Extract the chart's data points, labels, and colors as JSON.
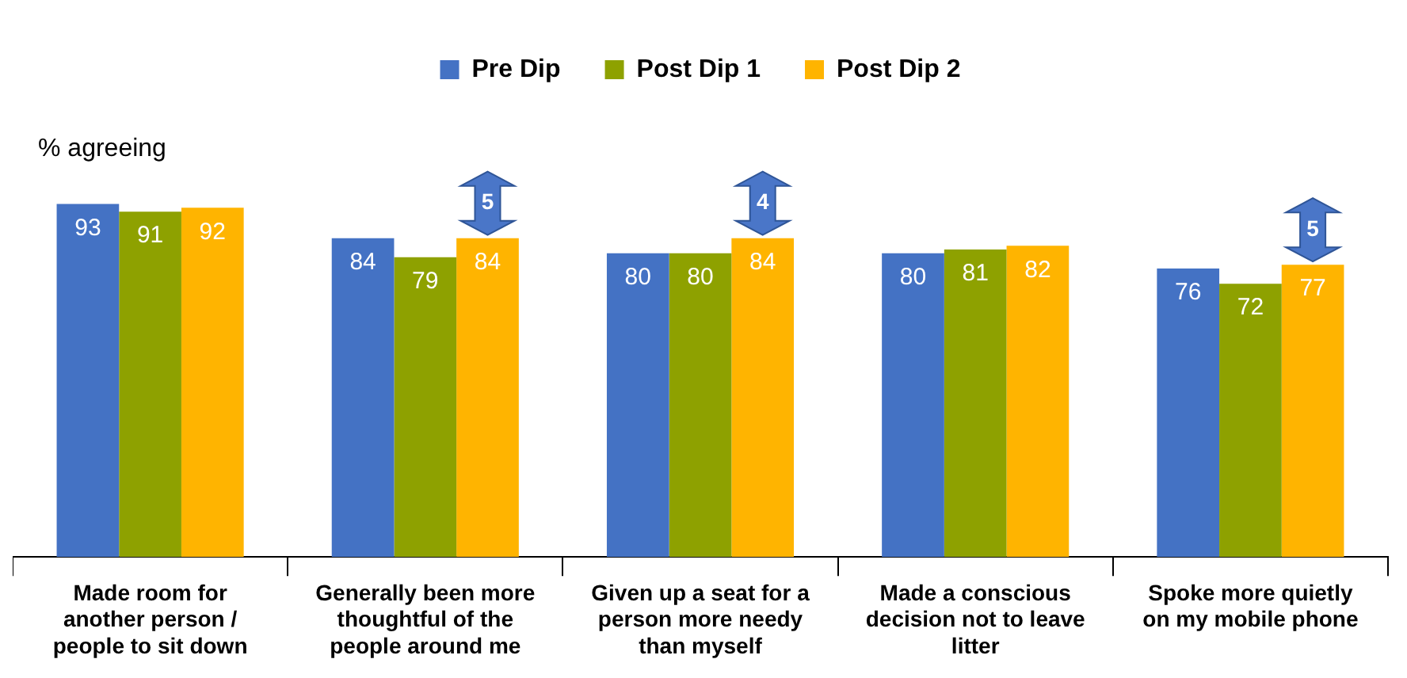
{
  "chart_data": {
    "type": "bar",
    "ylabel": "% agreeing",
    "categories": [
      "Made room for another person / people to sit down",
      "Generally been more thoughtful of the people around me",
      "Given up a seat for a person more needy than myself",
      "Made a conscious decision not to leave litter",
      "Spoke more quietly on my mobile phone"
    ],
    "series": [
      {
        "name": "Pre Dip",
        "color": "#4472c4",
        "values": [
          93,
          84,
          80,
          80,
          76
        ]
      },
      {
        "name": "Post Dip 1",
        "color": "#8ea100",
        "values": [
          91,
          79,
          80,
          81,
          72
        ]
      },
      {
        "name": "Post Dip 2",
        "color": "#ffb400",
        "values": [
          92,
          84,
          84,
          82,
          77
        ]
      }
    ],
    "data_labels": true,
    "legend": "top",
    "grid": false,
    "tick_labels": "x",
    "annotations": [
      "5",
      "4",
      "5"
    ]
  }
}
